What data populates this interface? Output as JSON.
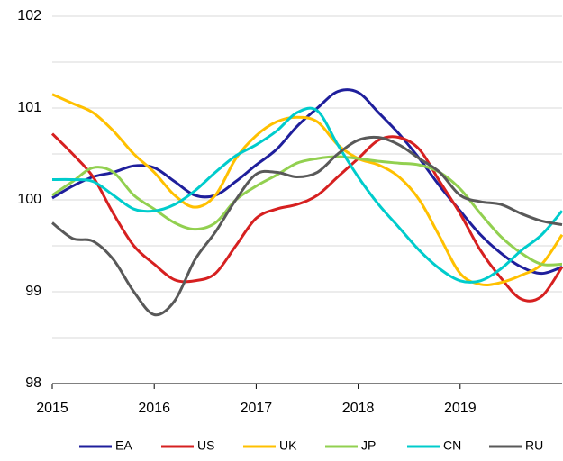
{
  "chart_data": {
    "type": "line",
    "x": [
      2015,
      2015.2,
      2015.4,
      2015.6,
      2015.8,
      2016,
      2016.2,
      2016.4,
      2016.6,
      2016.8,
      2017,
      2017.2,
      2017.4,
      2017.6,
      2017.8,
      2018,
      2018.2,
      2018.4,
      2018.6,
      2018.8,
      2019,
      2019.2,
      2019.4,
      2019.6,
      2019.8,
      2020
    ],
    "series": [
      {
        "name": "EA",
        "color": "#1f1f9c",
        "values": [
          100.02,
          100.15,
          100.25,
          100.3,
          100.37,
          100.35,
          100.2,
          100.05,
          100.05,
          100.2,
          100.38,
          100.55,
          100.8,
          101.0,
          101.18,
          101.17,
          100.95,
          100.72,
          100.45,
          100.15,
          99.88,
          99.62,
          99.42,
          99.27,
          99.2,
          99.27
        ]
      },
      {
        "name": "US",
        "color": "#d62020",
        "values": [
          100.72,
          100.5,
          100.25,
          99.85,
          99.5,
          99.3,
          99.13,
          99.12,
          99.2,
          99.5,
          99.8,
          99.9,
          99.95,
          100.05,
          100.25,
          100.45,
          100.65,
          100.68,
          100.55,
          100.2,
          99.85,
          99.45,
          99.15,
          98.92,
          98.95,
          99.27
        ]
      },
      {
        "name": "UK",
        "color": "#ffc000",
        "values": [
          101.15,
          101.05,
          100.95,
          100.75,
          100.5,
          100.3,
          100.05,
          99.92,
          100.05,
          100.45,
          100.7,
          100.85,
          100.9,
          100.85,
          100.6,
          100.45,
          100.38,
          100.25,
          100.0,
          99.6,
          99.2,
          99.08,
          99.1,
          99.18,
          99.3,
          99.62
        ]
      },
      {
        "name": "JP",
        "color": "#92d050",
        "values": [
          100.05,
          100.2,
          100.35,
          100.3,
          100.05,
          99.9,
          99.75,
          99.68,
          99.75,
          100.0,
          100.15,
          100.27,
          100.4,
          100.45,
          100.47,
          100.45,
          100.42,
          100.4,
          100.38,
          100.3,
          100.12,
          99.85,
          99.6,
          99.42,
          99.3,
          99.3
        ]
      },
      {
        "name": "CN",
        "color": "#00cccc",
        "values": [
          100.22,
          100.22,
          100.2,
          100.05,
          99.9,
          99.88,
          99.95,
          100.1,
          100.3,
          100.48,
          100.6,
          100.75,
          100.95,
          100.97,
          100.6,
          100.25,
          99.95,
          99.7,
          99.45,
          99.25,
          99.12,
          99.12,
          99.25,
          99.45,
          99.62,
          99.88
        ]
      },
      {
        "name": "RU",
        "color": "#595959",
        "values": [
          99.75,
          99.58,
          99.55,
          99.35,
          99.0,
          98.75,
          98.9,
          99.35,
          99.65,
          100.0,
          100.28,
          100.3,
          100.25,
          100.3,
          100.5,
          100.65,
          100.68,
          100.6,
          100.45,
          100.3,
          100.05,
          99.98,
          99.95,
          99.85,
          99.77,
          99.73
        ]
      }
    ],
    "xlim": [
      2015,
      2020
    ],
    "xticks": [
      2015,
      2016,
      2017,
      2018,
      2019
    ],
    "ylim": [
      98,
      102
    ],
    "yticks": [
      98,
      99,
      100,
      101,
      102
    ],
    "minor_yticks": [
      98.5,
      99.5,
      100.5,
      101.5
    ],
    "grid": true,
    "legend": "bottom"
  }
}
